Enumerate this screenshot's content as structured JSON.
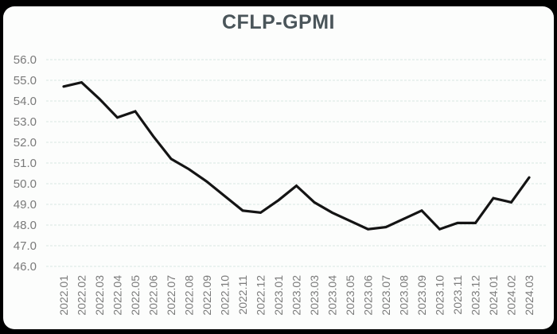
{
  "window": {
    "frame_color": "#000000",
    "card_background": "#fcfdfc"
  },
  "chart_data": {
    "type": "line",
    "title": "CFLP-GPMI",
    "categories": [
      "2022.01",
      "2022.02",
      "2022.03",
      "2022.04",
      "2022.05",
      "2022.06",
      "2022.07",
      "2022.08",
      "2022.09",
      "2022.10",
      "2022.11",
      "2022.12",
      "2023.01",
      "2023.02",
      "2023.03",
      "2023.04",
      "2023.05",
      "2023.06",
      "2023.07",
      "2023.08",
      "2023.09",
      "2023.10",
      "2023.11",
      "2023.12",
      "2024.01",
      "2024.02",
      "2024.03"
    ],
    "series": [
      {
        "name": "CFLP-GPMI",
        "values": [
          54.7,
          54.9,
          54.1,
          53.2,
          53.5,
          52.3,
          51.2,
          50.7,
          50.1,
          49.4,
          48.7,
          48.6,
          49.2,
          49.9,
          49.1,
          48.6,
          48.2,
          47.8,
          47.9,
          48.3,
          48.7,
          47.8,
          48.1,
          48.1,
          49.3,
          49.1,
          50.3
        ]
      }
    ],
    "xlabel": "",
    "ylabel": "",
    "ylim": [
      46.0,
      56.0
    ],
    "ytick_labels": [
      "56.0",
      "55.0",
      "54.0",
      "53.0",
      "52.0",
      "51.0",
      "50.0",
      "49.0",
      "48.0",
      "47.0",
      "46.0"
    ],
    "x_label_rotation": "vertical",
    "grid": "horizontal-dashed",
    "legend": "none",
    "line_color": "#141414",
    "grid_color": "#d9e7e2",
    "axis_label_color": "#7a7a7a",
    "title_color": "#4a555a"
  }
}
